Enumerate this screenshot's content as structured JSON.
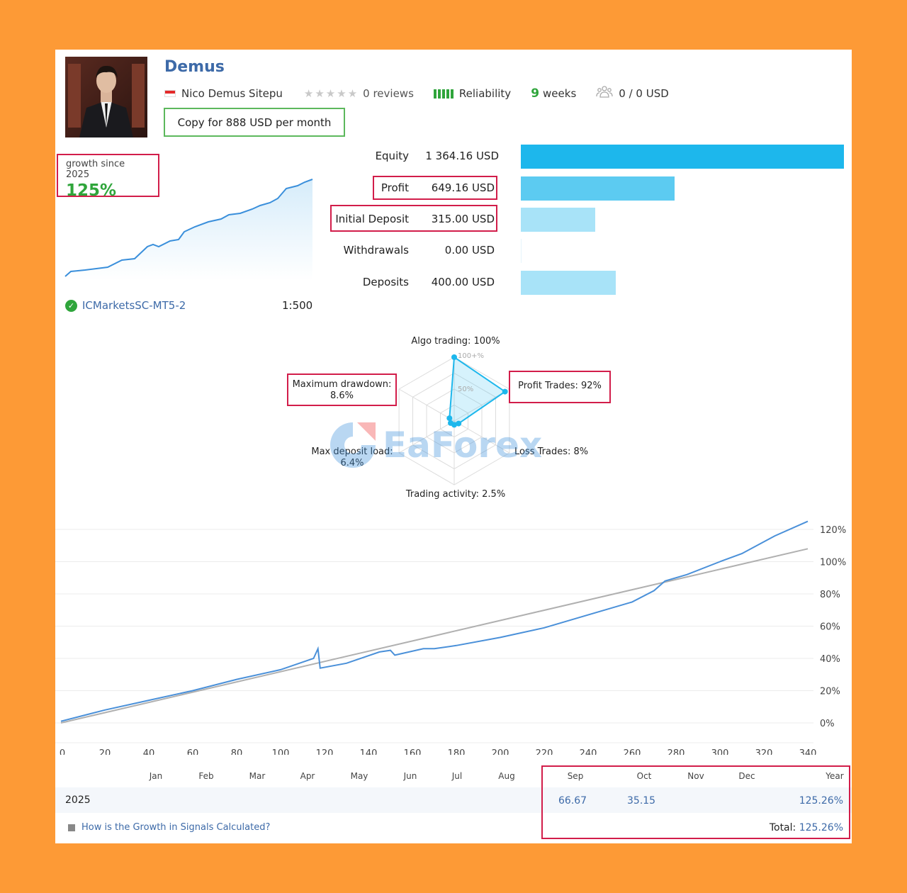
{
  "header": {
    "name": "Demus",
    "author": "Nico Demus Sitepu",
    "reviews": "0 reviews",
    "reliability_label": "Reliability",
    "weeks_value": "9",
    "weeks_label": "weeks",
    "subscribers": "0 / 0 USD",
    "copy_button": "Copy for 888 USD per month"
  },
  "growth": {
    "label": "growth since 2025",
    "value": "125%"
  },
  "broker": {
    "name": "ICMarketsSC-MT5-2",
    "leverage": "1:500"
  },
  "stats": [
    {
      "label": "Equity",
      "value": "1 364.16 USD",
      "fraction": 1.0,
      "color": "#1db7ec"
    },
    {
      "label": "Profit",
      "value": "649.16 USD",
      "fraction": 0.476,
      "color": "#5ccbf1"
    },
    {
      "label": "Initial Deposit",
      "value": "315.00 USD",
      "fraction": 0.231,
      "color": "#a8e3f8"
    },
    {
      "label": "Withdrawals",
      "value": "0.00 USD",
      "fraction": 0.0,
      "color": "#a8e3f8"
    },
    {
      "label": "Deposits",
      "value": "400.00 USD",
      "fraction": 0.293,
      "color": "#a8e3f8"
    }
  ],
  "radar": {
    "algo": "Algo trading: 100%",
    "profit_trades": "Profit Trades: 92%",
    "loss_trades": "Loss Trades: 8%",
    "activity": "Trading activity: 2.5%",
    "deposit_load_1": "Max deposit load:",
    "deposit_load_2": "6.4%",
    "drawdown_1": "Maximum drawdown:",
    "drawdown_2": "8.6%",
    "ring_100": "100+%",
    "ring_50": "50%",
    "values": [
      100,
      92,
      8,
      2.5,
      6.4,
      8.6
    ]
  },
  "watermark": "EaForex",
  "chart_data": {
    "type": "line",
    "x_ticks": [
      "0",
      "20",
      "40",
      "60",
      "80",
      "100",
      "120",
      "140",
      "160",
      "180",
      "200",
      "220",
      "240",
      "260",
      "280",
      "300",
      "320",
      "340"
    ],
    "y_ticks": [
      "120%",
      "100%",
      "80%",
      "60%",
      "40%",
      "20%",
      "0%"
    ],
    "xlim": [
      0,
      340
    ],
    "ylim": [
      0,
      120
    ],
    "months": [
      "Jan",
      "Feb",
      "Mar",
      "Apr",
      "May",
      "Jun",
      "Jul",
      "Aug",
      "Sep",
      "Oct",
      "Nov",
      "Dec",
      "Year"
    ],
    "growth_series": [
      [
        0,
        1
      ],
      [
        20,
        8
      ],
      [
        40,
        14
      ],
      [
        60,
        20
      ],
      [
        80,
        27
      ],
      [
        100,
        33
      ],
      [
        115,
        40
      ],
      [
        117,
        46
      ],
      [
        118,
        34
      ],
      [
        130,
        37
      ],
      [
        145,
        44
      ],
      [
        150,
        45
      ],
      [
        152,
        42
      ],
      [
        165,
        46
      ],
      [
        170,
        46
      ],
      [
        180,
        48
      ],
      [
        200,
        53
      ],
      [
        220,
        59
      ],
      [
        240,
        67
      ],
      [
        260,
        75
      ],
      [
        270,
        82
      ],
      [
        275,
        88
      ],
      [
        285,
        92
      ],
      [
        300,
        100
      ],
      [
        310,
        105
      ],
      [
        325,
        116
      ],
      [
        340,
        125
      ]
    ],
    "trend_series": [
      [
        0,
        0
      ],
      [
        340,
        108
      ]
    ]
  },
  "table": {
    "year": "2025",
    "sep": "66.67",
    "oct": "35.15",
    "year_total": "125.26%",
    "total_label": "Total:",
    "total_value": "125.26%"
  },
  "footer_link": "How is the Growth in Signals Calculated?"
}
